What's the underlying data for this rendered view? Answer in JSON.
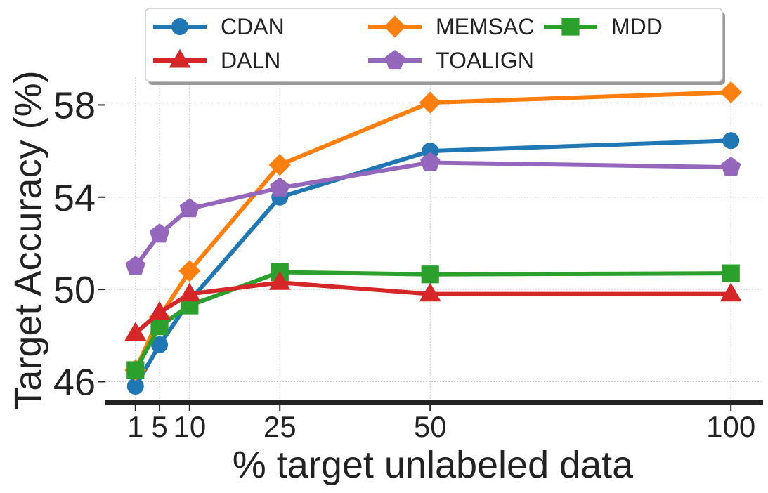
{
  "chart_data": {
    "type": "line",
    "xlabel": "% target unlabeled data",
    "ylabel": "Target Accuracy (%)",
    "x": [
      1,
      5,
      10,
      25,
      50,
      100
    ],
    "xticks": [
      1,
      5,
      10,
      25,
      50,
      100
    ],
    "yticks": [
      46,
      50,
      54,
      58
    ],
    "xlim": [
      -4,
      105
    ],
    "ylim": [
      45.1,
      59.2
    ],
    "grid": true,
    "legend": "top-center",
    "series": [
      {
        "name": "CDAN",
        "color": "#1f77b4",
        "marker": "circle",
        "values": [
          45.8,
          47.6,
          49.5,
          54.0,
          56.0,
          56.45
        ]
      },
      {
        "name": "MEMSAC",
        "color": "#ff7f0e",
        "marker": "diamond",
        "values": [
          46.5,
          48.8,
          50.8,
          55.4,
          58.1,
          58.55
        ]
      },
      {
        "name": "MDD",
        "color": "#2ca02c",
        "marker": "square",
        "values": [
          46.5,
          48.4,
          49.3,
          50.75,
          50.65,
          50.7
        ]
      },
      {
        "name": "DALN",
        "color": "#d62728",
        "marker": "triangle",
        "values": [
          48.1,
          49.0,
          49.8,
          50.3,
          49.8,
          49.8
        ]
      },
      {
        "name": "TOALIGN",
        "color": "#9467bd",
        "marker": "pentagon",
        "values": [
          51.0,
          52.4,
          53.5,
          54.4,
          55.5,
          55.3
        ]
      }
    ]
  }
}
